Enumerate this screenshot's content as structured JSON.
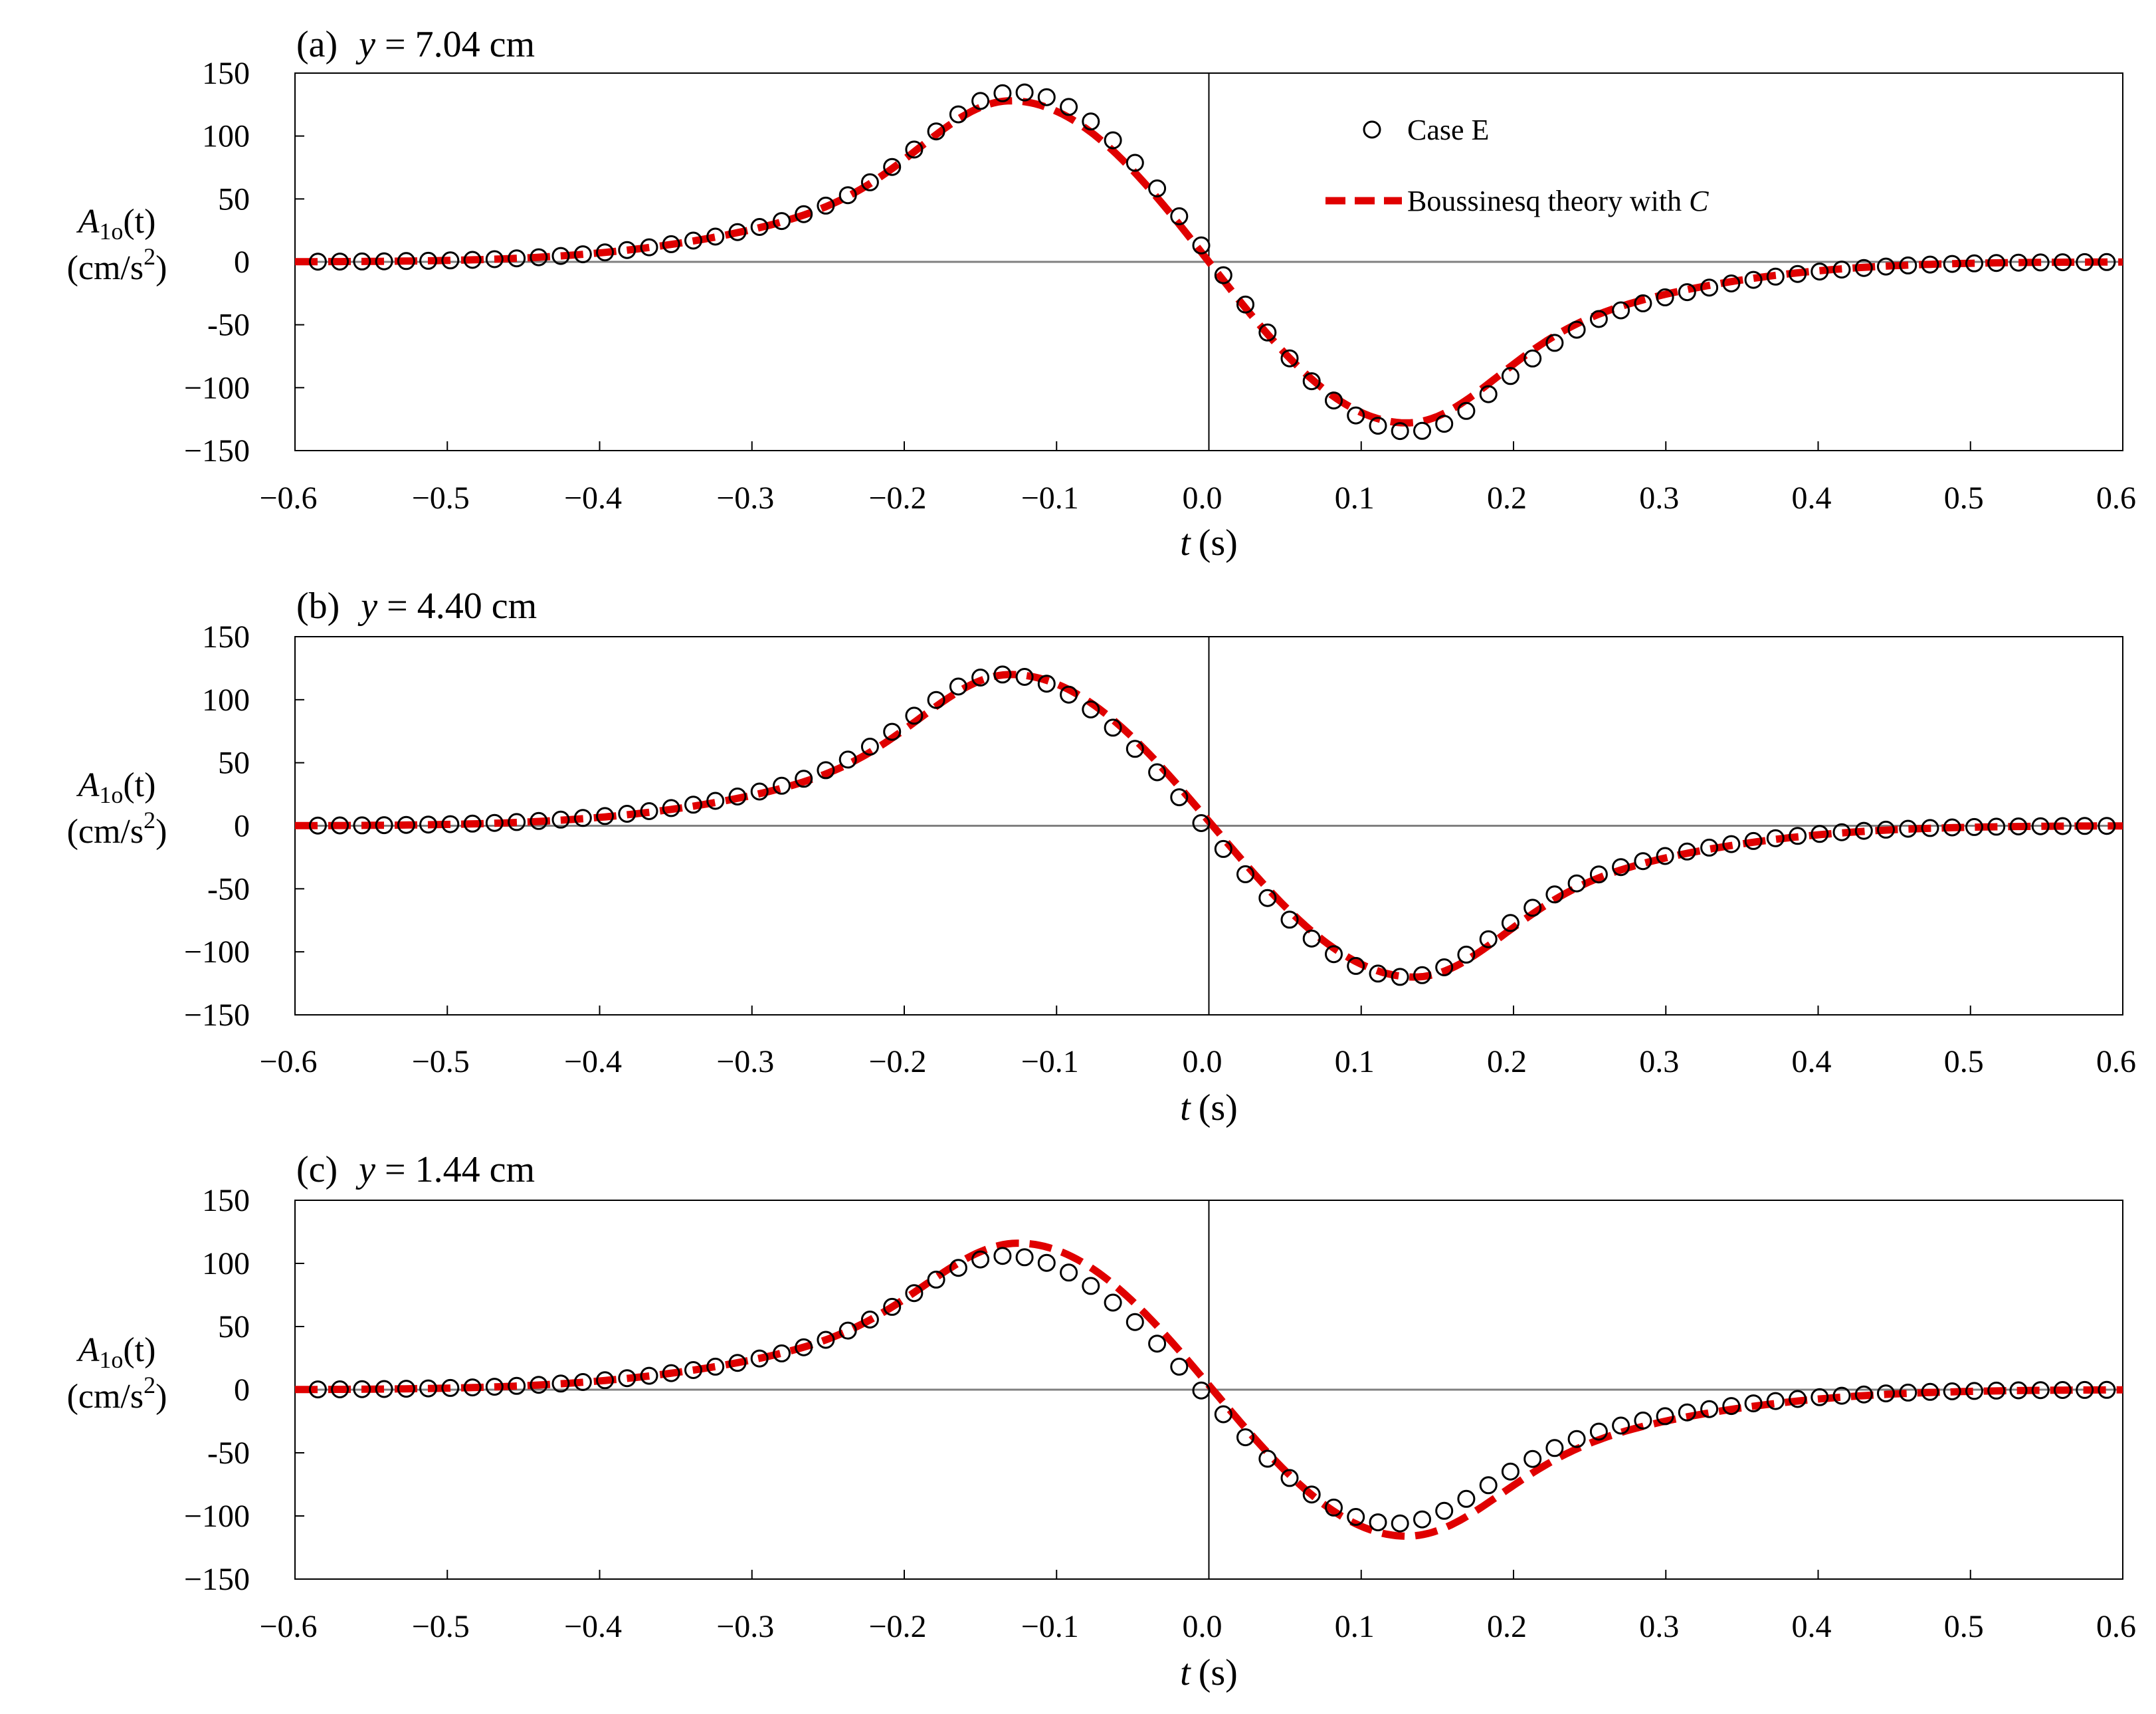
{
  "chart_data": [
    {
      "type": "scatter+line",
      "panel_label": "(a)",
      "title_var": "y",
      "title_value": "= 7.04 cm",
      "xlabel_var": "t",
      "xlabel_unit": "(s)",
      "ylabel_sym": "A",
      "ylabel_sub": "1o",
      "ylabel_arg": "(t)",
      "ylabel_unit_a": "(cm/s",
      "ylabel_unit_sup": "2",
      "ylabel_unit_b": ")",
      "xlim": [
        -0.6,
        0.6
      ],
      "ylim": [
        -150,
        150
      ],
      "xticks": [
        "−0.6",
        "−0.5",
        "−0.4",
        "−0.3",
        "−0.2",
        "−0.1",
        "0.0",
        "0.1",
        "0.2",
        "0.3",
        "0.4",
        "0.5",
        "0.6"
      ],
      "yticks": [
        "150",
        "100",
        "50",
        "0",
        "-50",
        "−100",
        "−150"
      ],
      "legend": {
        "show": true,
        "position": "top-right",
        "marker_label": "Case E",
        "line_label_prefix": "Boussinesq theory with ",
        "line_label_var": "C"
      },
      "pulse": {
        "t0": -0.13,
        "t1": 0.13,
        "points_amp": 135,
        "theory_amp": 128,
        "sigma": 0.055,
        "points_phase": 0.003
      },
      "series": [
        {
          "name": "Case E",
          "style": "open-circle",
          "color": "#000000",
          "t_start": -0.585,
          "t_step": 0.0145,
          "count": 82
        },
        {
          "name": "Boussinesq theory with C",
          "style": "dashed-line",
          "color": "#e00000"
        }
      ]
    },
    {
      "type": "scatter+line",
      "panel_label": "(b)",
      "title_var": "y",
      "title_value": "= 4.40 cm",
      "xlabel_var": "t",
      "xlabel_unit": "(s)",
      "ylabel_sym": "A",
      "ylabel_sub": "1o",
      "ylabel_arg": "(t)",
      "ylabel_unit_a": "(cm/s",
      "ylabel_unit_sup": "2",
      "ylabel_unit_b": ")",
      "xlim": [
        -0.6,
        0.6
      ],
      "ylim": [
        -150,
        150
      ],
      "xticks": [
        "−0.6",
        "−0.5",
        "−0.4",
        "−0.3",
        "−0.2",
        "−0.1",
        "0.0",
        "0.1",
        "0.2",
        "0.3",
        "0.4",
        "0.5",
        "0.6"
      ],
      "yticks": [
        "150",
        "100",
        "50",
        "0",
        "-50",
        "−100",
        "−150"
      ],
      "legend": {
        "show": false
      },
      "pulse": {
        "t0": -0.13,
        "t1": 0.135,
        "points_amp": 120,
        "theory_amp": 120,
        "sigma": 0.055,
        "points_phase": -0.006
      },
      "series": [
        {
          "name": "Case E",
          "style": "open-circle",
          "color": "#000000",
          "t_start": -0.585,
          "t_step": 0.0145,
          "count": 82
        },
        {
          "name": "Boussinesq theory with C",
          "style": "dashed-line",
          "color": "#e00000"
        }
      ]
    },
    {
      "type": "scatter+line",
      "panel_label": "(c)",
      "title_var": "y",
      "title_value": "= 1.44 cm",
      "xlabel_var": "t",
      "xlabel_unit": "(s)",
      "ylabel_sym": "A",
      "ylabel_sub": "1o",
      "ylabel_arg": "(t)",
      "ylabel_unit_a": "(cm/s",
      "ylabel_unit_sup": "2",
      "ylabel_unit_b": ")",
      "xlim": [
        -0.6,
        0.6
      ],
      "ylim": [
        -150,
        150
      ],
      "xticks": [
        "−0.6",
        "−0.5",
        "−0.4",
        "−0.3",
        "−0.2",
        "−0.1",
        "0.0",
        "0.1",
        "0.2",
        "0.3",
        "0.4",
        "0.5",
        "0.6"
      ],
      "yticks": [
        "150",
        "100",
        "50",
        "0",
        "-50",
        "−100",
        "−150"
      ],
      "legend": {
        "show": false
      },
      "pulse": {
        "t0": -0.125,
        "t1": 0.13,
        "points_amp": 106,
        "theory_amp": 116,
        "sigma": 0.057,
        "points_phase": -0.008
      },
      "series": [
        {
          "name": "Case E",
          "style": "open-circle",
          "color": "#000000",
          "t_start": -0.585,
          "t_step": 0.0145,
          "count": 82
        },
        {
          "name": "Boussinesq theory with C",
          "style": "dashed-line",
          "color": "#e00000"
        }
      ]
    }
  ]
}
